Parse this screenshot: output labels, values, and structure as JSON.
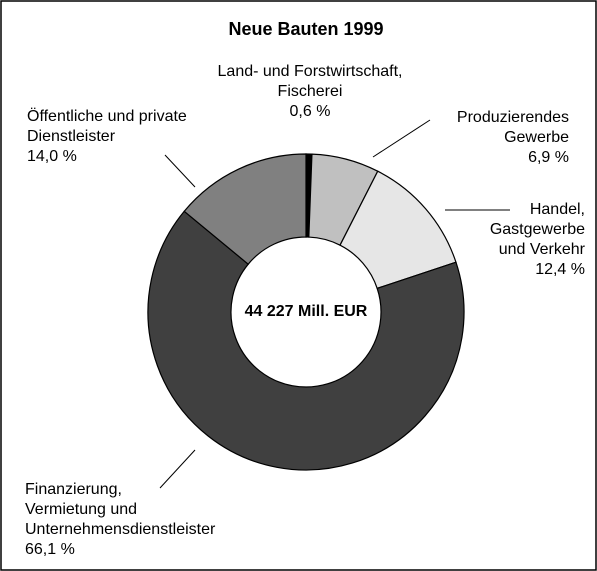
{
  "chart_data": {
    "type": "donut",
    "title": "Neue Bauten 1999",
    "center_label": "44 227 Mill. EUR",
    "categories": [
      "Land- und Forstwirtschaft,\nFischerei",
      "Produzierendes\nGewerbe",
      "Handel,\nGastgewerbe\nund Verkehr",
      "Finanzierung,\nVermietung und\nUnternehmensdienstleister",
      "Öffentliche und private\nDienstleister"
    ],
    "values": [
      0.6,
      6.9,
      12.4,
      66.1,
      14.0
    ],
    "value_labels": [
      "0,6 %",
      "6,9 %",
      "12,4 %",
      "66,1 %",
      "14,0 %"
    ],
    "colors": [
      "#000000",
      "#c0c0c0",
      "#e6e6e6",
      "#404040",
      "#808080"
    ]
  }
}
